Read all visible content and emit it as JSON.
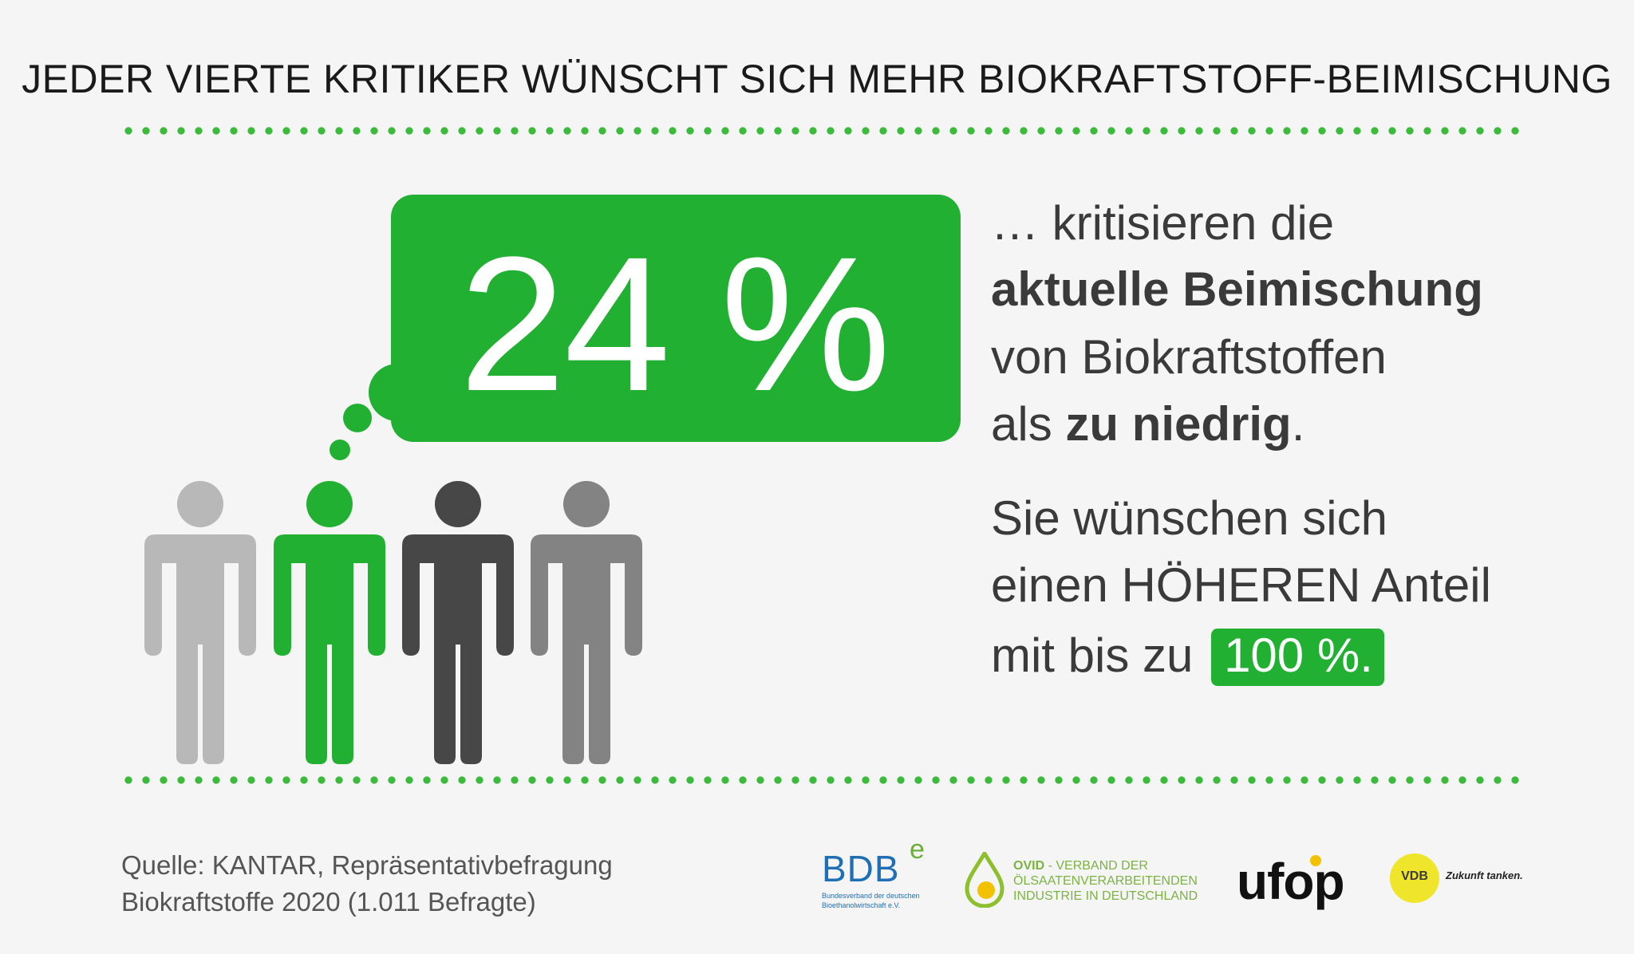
{
  "headline": "JEDER VIERTE KRITIKER WÜNSCHT SICH MEHR BIOKRAFTSTOFF-BEIMISCHUNG",
  "stat": {
    "value": "24 %"
  },
  "statement": {
    "line1": "… kritisieren die",
    "line2_bold": "aktuelle Beimischung",
    "line3": "von Biokraftstoffen",
    "line4_pre": "als ",
    "line4_bold": "zu niedrig",
    "line4_post": ".",
    "line5": "Sie wünschen sich",
    "line6": "einen HÖHEREN Anteil",
    "line7_pre": "mit bis zu ",
    "line7_highlight": "100 %."
  },
  "figures": [
    {
      "name": "person-light-gray",
      "color": "#b8b8b8"
    },
    {
      "name": "person-green",
      "color": "#22b033"
    },
    {
      "name": "person-dark-gray",
      "color": "#474747"
    },
    {
      "name": "person-mid-gray",
      "color": "#838383"
    }
  ],
  "colors": {
    "accent": "#22b033",
    "dots": "#3cba3c",
    "background": "#f5f5f5"
  },
  "source": {
    "line1": "Quelle: KANTAR, Repräsentativbefragung",
    "line2": "Biokraftstoffe 2020 (1.011 Befragte)"
  },
  "logos": {
    "bdbe": {
      "main": "BDB",
      "sup": "e",
      "sub1": "Bundesverband der deutschen",
      "sub2": "Bioethanolwirtschaft e.V."
    },
    "ovid": {
      "name": "OVID",
      "rest1": " - VERBAND DER",
      "rest2": "ÖLSAATENVERARBEITENDEN",
      "rest3": "INDUSTRIE IN DEUTSCHLAND"
    },
    "ufop": {
      "name": "ufop"
    },
    "vdb": {
      "badge": "VDB",
      "slogan": "Zukunft tanken."
    }
  }
}
